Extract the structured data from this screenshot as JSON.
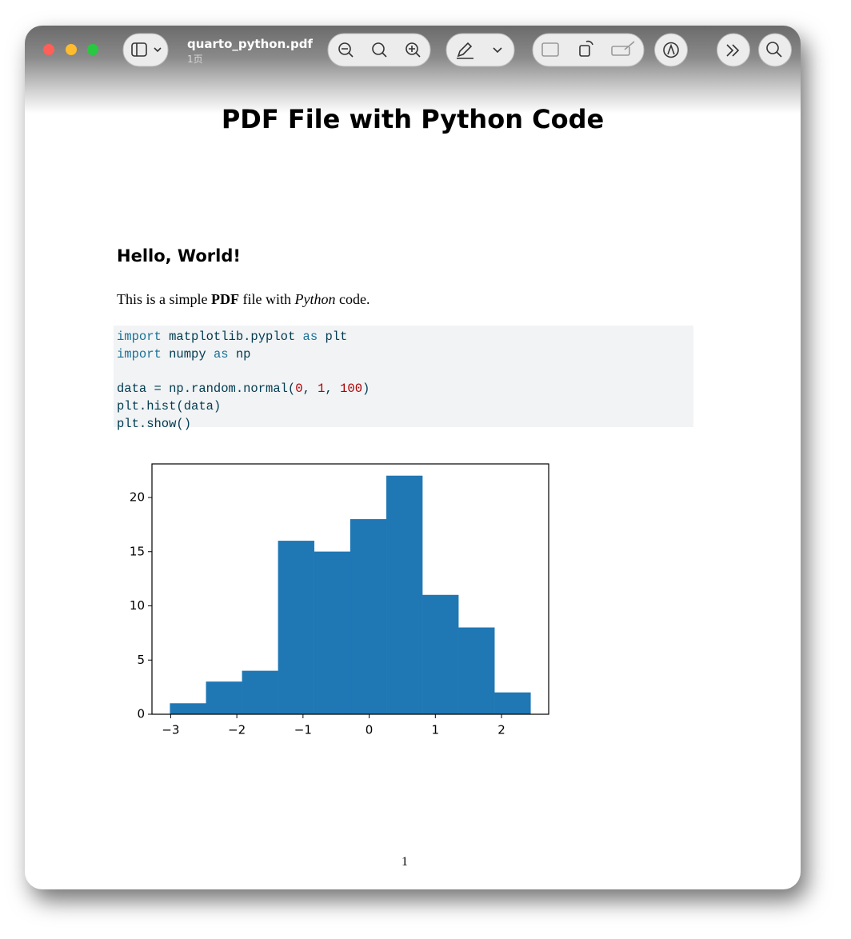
{
  "window": {
    "file_name": "quarto_python.pdf",
    "page_info": "1页"
  },
  "document": {
    "title": "PDF File with Python Code",
    "heading": "Hello, World!",
    "paragraph": [
      "This is a simple ",
      "PDF",
      " file with ",
      "Python",
      " code."
    ],
    "code": {
      "lines": [
        [
          {
            "text": "import",
            "color": "#1a7196"
          },
          {
            "text": " matplotlib.pyplot "
          },
          {
            "text": "as",
            "color": "#1a7196"
          },
          {
            "text": " plt"
          }
        ],
        [
          {
            "text": "import",
            "color": "#1a7196"
          },
          {
            "text": " numpy "
          },
          {
            "text": "as",
            "color": "#1a7196"
          },
          {
            "text": " np"
          }
        ],
        [],
        [
          {
            "text": "data = np.random.normal("
          },
          {
            "text": "0",
            "color": "#ad0000"
          },
          {
            "text": ", "
          },
          {
            "text": "1",
            "color": "#ad0000"
          },
          {
            "text": ", "
          },
          {
            "text": "100",
            "color": "#ad0000"
          },
          {
            "text": ")"
          }
        ],
        [
          {
            "text": "plt.hist(data)"
          }
        ],
        [
          {
            "text": "plt.show()"
          }
        ]
      ]
    },
    "page_number": "1"
  },
  "chart_data": {
    "type": "histogram",
    "bins": [
      -3.01,
      -2.465,
      -1.92,
      -1.375,
      -0.83,
      -0.285,
      0.26,
      0.805,
      1.35,
      1.895,
      2.44
    ],
    "values": [
      1,
      3,
      4,
      16,
      15,
      18,
      22,
      11,
      8,
      2
    ],
    "color": "#1f77b4",
    "xlim": [
      -3.2825,
      2.7125
    ],
    "xticks": [
      {
        "value": -3,
        "label": "−3"
      },
      {
        "value": -2,
        "label": "−2"
      },
      {
        "value": -1,
        "label": "−1"
      },
      0,
      1,
      2
    ],
    "ylim": [
      0,
      23.1
    ],
    "yticks": [
      0,
      5,
      10,
      15,
      20
    ]
  }
}
